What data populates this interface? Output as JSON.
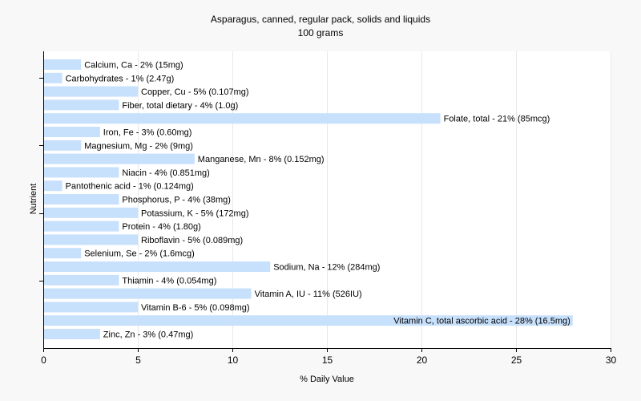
{
  "chart_data": {
    "type": "bar",
    "orientation": "horizontal",
    "title": "Asparagus, canned, regular pack, solids and liquids",
    "subtitle": "100 grams",
    "xlabel": "% Daily Value",
    "ylabel": "Nutrient",
    "xlim": [
      0,
      30
    ],
    "xticks": [
      0,
      5,
      10,
      15,
      20,
      25,
      30
    ],
    "grid": "vertical",
    "legend": "none",
    "bar_color": "#c7e0fc",
    "background_color": "#f8f8f8",
    "grid_color": "#e8e8e8",
    "axis_color": "#000000",
    "categories": [
      "Calcium, Ca",
      "Carbohydrates",
      "Copper, Cu",
      "Fiber, total dietary",
      "Folate, total",
      "Iron, Fe",
      "Magnesium, Mg",
      "Manganese, Mn",
      "Niacin",
      "Pantothenic acid",
      "Phosphorus, P",
      "Potassium, K",
      "Protein",
      "Riboflavin",
      "Selenium, Se",
      "Sodium, Na",
      "Thiamin",
      "Vitamin A, IU",
      "Vitamin B-6",
      "Vitamin C, total ascorbic acid",
      "Zinc, Zn"
    ],
    "values": [
      2,
      1,
      5,
      4,
      21,
      3,
      2,
      8,
      4,
      1,
      4,
      5,
      4,
      5,
      2,
      12,
      4,
      11,
      5,
      28,
      3
    ],
    "bar_labels": [
      "Calcium, Ca - 2% (15mg)",
      "Carbohydrates - 1% (2.47g)",
      "Copper, Cu - 5% (0.107mg)",
      "Fiber, total dietary - 4% (1.0g)",
      "Folate, total - 21% (85mcg)",
      "Iron, Fe - 3% (0.60mg)",
      "Magnesium, Mg - 2% (9mg)",
      "Manganese, Mn - 8% (0.152mg)",
      "Niacin - 4% (0.851mg)",
      "Pantothenic acid - 1% (0.124mg)",
      "Phosphorus, P - 4% (38mg)",
      "Potassium, K - 5% (172mg)",
      "Protein - 4% (1.80g)",
      "Riboflavin - 5% (0.089mg)",
      "Selenium, Se - 2% (1.6mcg)",
      "Sodium, Na - 12% (284mg)",
      "Thiamin - 4% (0.054mg)",
      "Vitamin A, IU - 11% (526IU)",
      "Vitamin B-6 - 5% (0.098mg)",
      "Vitamin C, total ascorbic acid - 28% (16.5mg)",
      "Zinc, Zn - 3% (0.47mg)"
    ]
  }
}
